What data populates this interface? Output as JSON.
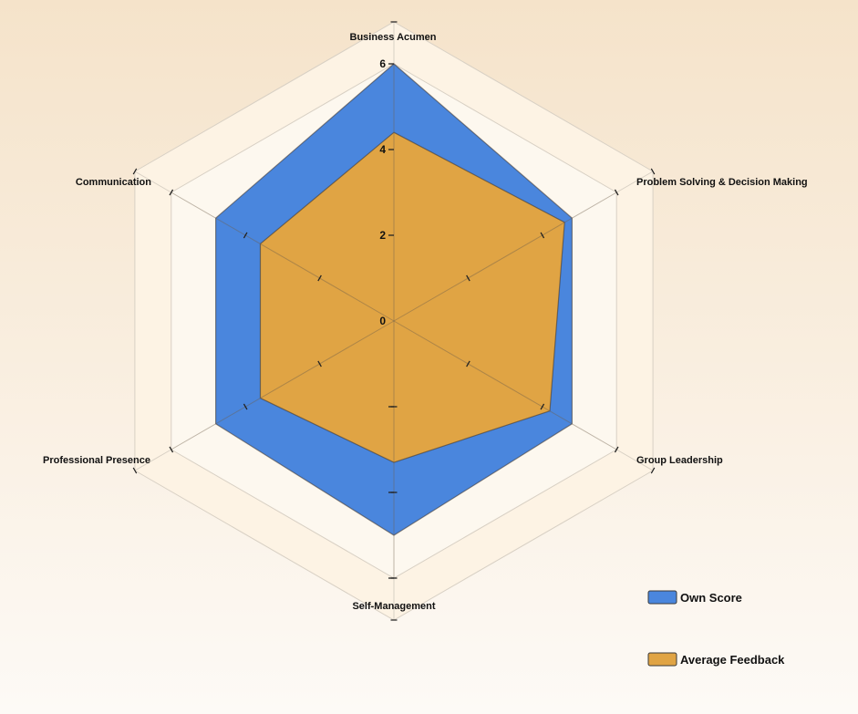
{
  "chart_data": {
    "type": "radar",
    "categories": [
      "Business Acumen",
      "Problem Solving & Decision Making",
      "Group Leadership",
      "Self-Management",
      "Professional Presence",
      "Communication"
    ],
    "series": [
      {
        "name": "Own Score",
        "values": [
          6,
          4.8,
          4.8,
          5,
          4.8,
          4.8
        ],
        "color": "#4a86dd"
      },
      {
        "name": "Average Feedback",
        "values": [
          4.4,
          4.6,
          4.2,
          3.3,
          3.6,
          3.6
        ],
        "color": "#e0a444"
      }
    ],
    "radial_axis": {
      "min": 0,
      "max": 6,
      "ticks": [
        0,
        2,
        4,
        6
      ],
      "tick_labels": [
        "0",
        "2",
        "4",
        "6"
      ]
    },
    "grid": true,
    "legend": "bottom-right"
  }
}
